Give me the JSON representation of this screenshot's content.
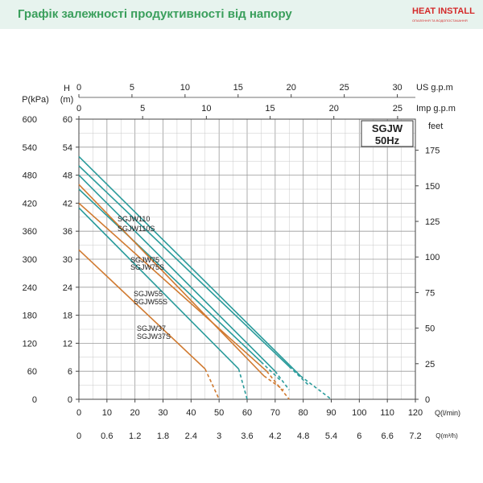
{
  "header": {
    "title": "Графік залежності продуктивності від напору",
    "logo_text": "HEAT INSTALL",
    "logo_sub": "ОПАЛЕННЯ ТА ВОДОПОСТАЧАННЯ"
  },
  "chart_data": {
    "type": "line",
    "label_box": [
      "SGJW",
      "50Hz"
    ],
    "axes": {
      "h_m": {
        "label": "H",
        "unit": "(m)",
        "min": 0,
        "max": 60,
        "ticks": [
          0,
          6,
          12,
          18,
          24,
          30,
          36,
          42,
          48,
          54,
          60
        ]
      },
      "p_kpa": {
        "label": "P(kPa)",
        "ticks": [
          0,
          60,
          120,
          180,
          240,
          300,
          360,
          420,
          480,
          540,
          600
        ]
      },
      "feet": {
        "label": "feet",
        "ticks": [
          0,
          25,
          50,
          75,
          100,
          125,
          150,
          175
        ]
      },
      "q_lmin": {
        "label": "Q(l/min)",
        "min": 0,
        "max": 120,
        "ticks": [
          0,
          10,
          20,
          30,
          40,
          50,
          60,
          70,
          80,
          90,
          100,
          110,
          120
        ]
      },
      "q_m3h": {
        "label": "Q(m³/h)",
        "ticks": [
          "0",
          "0.6",
          "1.2",
          "1.8",
          "2.4",
          "3",
          "3.6",
          "4.2",
          "4.8",
          "5.4",
          "6",
          "6.6",
          "7.2"
        ]
      },
      "us_gpm": {
        "label": "US g.p.m",
        "ticks": [
          0,
          5,
          10,
          15,
          20,
          25,
          30
        ]
      },
      "imp_gpm": {
        "label": "Imp g.p.m",
        "ticks": [
          0,
          5,
          10,
          15,
          20,
          25
        ]
      }
    },
    "x_unit": "l/min",
    "y_unit": "m",
    "series": [
      {
        "name": "SGJW37S",
        "color": "#d07a30",
        "points": [
          [
            0,
            32
          ],
          [
            45,
            6.5
          ]
        ],
        "dashed_points": [
          [
            45,
            6.5
          ],
          [
            50,
            0
          ]
        ]
      },
      {
        "name": "SGJW37",
        "color": "#2a9b9b",
        "points": [
          [
            0,
            41
          ],
          [
            57,
            6.5
          ]
        ],
        "dashed_points": [
          [
            57,
            6.5
          ],
          [
            60,
            0
          ]
        ]
      },
      {
        "name": "SGJW55S",
        "color": "#d07a30",
        "points": [
          [
            0,
            42
          ],
          [
            67,
            6
          ]
        ],
        "dashed_points": [
          [
            67,
            6
          ],
          [
            75,
            0
          ]
        ]
      },
      {
        "name": "SGJW55",
        "color": "#2a9b9b",
        "points": [
          [
            0,
            45
          ],
          [
            30,
            28
          ],
          [
            65,
            8
          ]
        ],
        "dashed_points": [
          [
            65,
            8
          ],
          [
            72,
            4
          ]
        ]
      },
      {
        "name": "SGJW75S",
        "color": "#d07a30",
        "points": [
          [
            0,
            46
          ],
          [
            66,
            5
          ]
        ],
        "dashed_points": [
          [
            66,
            5
          ],
          [
            73,
            2
          ]
        ]
      },
      {
        "name": "SGJW75",
        "color": "#2a9b9b",
        "points": [
          [
            0,
            48
          ],
          [
            70,
            6
          ]
        ],
        "dashed_points": [
          [
            70,
            6
          ],
          [
            75,
            2
          ]
        ]
      },
      {
        "name": "SGJW110S",
        "color": "#2a9b9b",
        "points": [
          [
            0,
            50
          ],
          [
            75,
            7
          ]
        ],
        "dashed_points": [
          [
            75,
            7
          ],
          [
            82,
            3
          ]
        ]
      },
      {
        "name": "SGJW110",
        "color": "#2a9b9b",
        "points": [
          [
            0,
            52
          ],
          [
            79,
            5
          ]
        ],
        "dashed_points": [
          [
            79,
            5
          ],
          [
            90,
            0
          ]
        ]
      }
    ],
    "grid": true
  }
}
